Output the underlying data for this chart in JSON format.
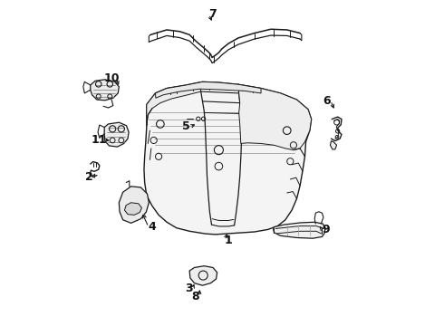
{
  "background_color": "#ffffff",
  "fig_width": 4.9,
  "fig_height": 3.6,
  "dpi": 100,
  "line_color": "#1a1a1a",
  "label_positions": {
    "1": [
      0.52,
      0.265,
      0.52,
      0.31
    ],
    "2": [
      0.095,
      0.455,
      0.115,
      0.468
    ],
    "3": [
      0.395,
      0.115,
      0.415,
      0.145
    ],
    "4": [
      0.285,
      0.305,
      0.295,
      0.335
    ],
    "5": [
      0.395,
      0.615,
      0.415,
      0.625
    ],
    "6": [
      0.82,
      0.69,
      0.835,
      0.665
    ],
    "7": [
      0.47,
      0.955,
      0.47,
      0.925
    ],
    "8": [
      0.415,
      0.088,
      0.425,
      0.115
    ],
    "9": [
      0.815,
      0.29,
      0.8,
      0.305
    ],
    "10": [
      0.165,
      0.76,
      0.185,
      0.73
    ],
    "11": [
      0.125,
      0.575,
      0.165,
      0.575
    ]
  }
}
